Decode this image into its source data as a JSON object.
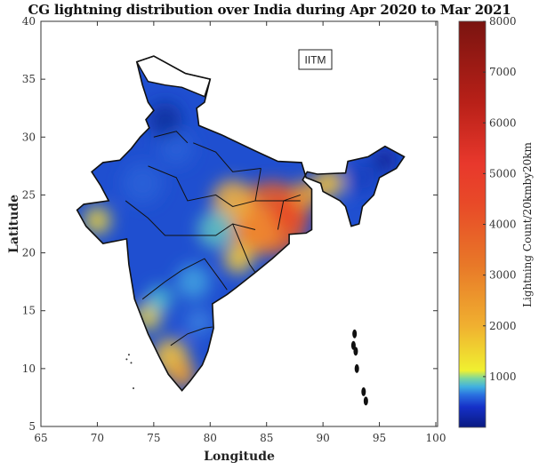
{
  "title": "CG lightning distribution over India during Apr 2020 to Mar 2021",
  "annotation": "IITM",
  "colors": {
    "ocean": "#ffffff",
    "low": "#1a3fbf",
    "mid": "#f5d020",
    "high": "#e8401c",
    "max": "#7a1010"
  },
  "chart_data": {
    "type": "heatmap",
    "title": "CG lightning distribution over India during Apr 2020 to Mar 2021",
    "xlabel": "Longitude",
    "ylabel": "Latitude",
    "xlim": [
      65,
      100
    ],
    "ylim": [
      5,
      40
    ],
    "xticks": [
      "65",
      "70",
      "75",
      "80",
      "85",
      "90",
      "95",
      "100"
    ],
    "yticks": [
      "5",
      "10",
      "15",
      "20",
      "25",
      "30",
      "35",
      "40"
    ],
    "colorbar": {
      "label": "Lightning Count/20kmby20km",
      "range": [
        0,
        8000
      ],
      "ticks": [
        "1000",
        "2000",
        "3000",
        "4000",
        "5000",
        "6000",
        "7000",
        "8000"
      ]
    }
  }
}
